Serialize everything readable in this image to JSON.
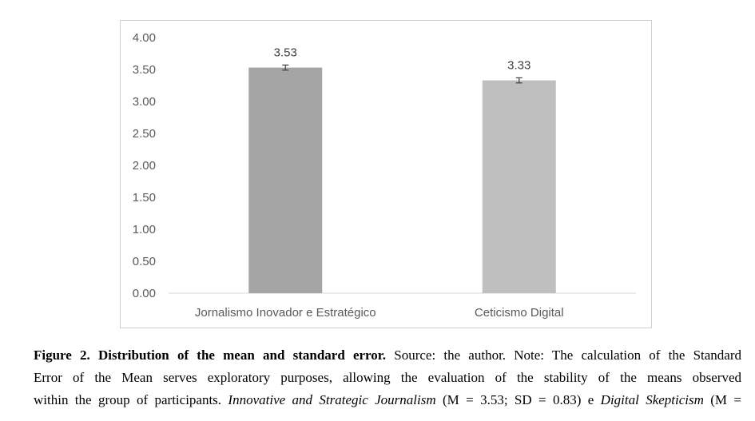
{
  "chart_data": {
    "type": "bar",
    "categories": [
      "Jornalismo Inovador e Estratégico",
      "Ceticismo Digital"
    ],
    "values": [
      3.53,
      3.33
    ],
    "error": [
      0.04,
      0.04
    ],
    "data_labels": [
      "3.53",
      "3.33"
    ],
    "colors": [
      "#a5a5a5",
      "#bfbfbf"
    ],
    "ylim": [
      0,
      4
    ],
    "yticks": [
      "0.00",
      "0.50",
      "1.00",
      "1.50",
      "2.00",
      "2.50",
      "3.00",
      "3.50",
      "4.00"
    ],
    "grid": false,
    "title": "",
    "xlabel": "",
    "ylabel": ""
  },
  "caption": {
    "figure_label": "Figure 2. Distribution of the mean and standard error.",
    "line1_rest": " Source: the author. Note: The calculation of the Standard",
    "line2": "Error of the Mean serves exploratory purposes, allowing the evaluation of the stability of the means observed",
    "line3_a": "within the group of participants. ",
    "line3_italic1": "Innovative and Strategic Journalism",
    "line3_b": " (M = 3.53; SD = 0.83) e ",
    "line3_italic2": "Digital Skepticism",
    "line3_c": " (M ="
  }
}
